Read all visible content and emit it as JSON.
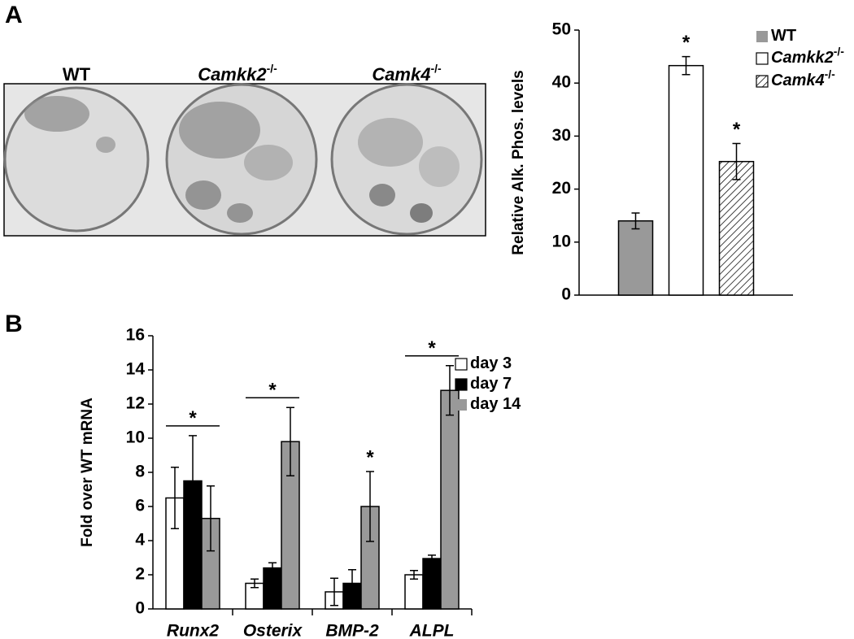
{
  "panels": [
    "A",
    "B"
  ],
  "photo": {
    "labels": [
      {
        "text": "WT"
      },
      {
        "text": "Camkk2",
        "sup": "-/-"
      },
      {
        "text": "Camk4",
        "sup": "-/-"
      }
    ]
  },
  "chart_data": [
    {
      "type": "bar",
      "ylabel": "Relative Alk. Phos. levels",
      "categories": [
        null
      ],
      "series": [
        {
          "name": "WT",
          "color": "#999999",
          "values": [
            14
          ],
          "errors": [
            1.5
          ]
        },
        {
          "name": "Camkk2",
          "name_sup": "-/-",
          "color": "#ffffff",
          "values": [
            43.3
          ],
          "errors": [
            1.7
          ]
        },
        {
          "name": "Camk4",
          "name_sup": "-/-",
          "color": "#ffffff",
          "pattern": "hatch",
          "values": [
            25.2
          ],
          "errors": [
            3.4
          ]
        }
      ],
      "ylim": [
        0,
        50
      ],
      "yticks": [
        0,
        10,
        20,
        30,
        40,
        50
      ],
      "annotations": [
        {
          "text": "*",
          "category": 0,
          "series": 1
        },
        {
          "text": "*",
          "category": 0,
          "series": 2
        }
      ]
    },
    {
      "type": "bar",
      "ylabel": "Fold over WT mRNA",
      "categories": [
        "Runx2",
        "Osterix",
        "BMP-2",
        "ALPL"
      ],
      "series": [
        {
          "name": "day 3",
          "color": "#ffffff",
          "values": [
            6.5,
            1.5,
            1.0,
            2.0
          ],
          "errors": [
            1.8,
            0.25,
            0.8,
            0.25
          ]
        },
        {
          "name": "day 7",
          "color": "#000000",
          "values": [
            7.5,
            2.4,
            1.5,
            2.95
          ],
          "errors": [
            2.65,
            0.3,
            0.8,
            0.2
          ]
        },
        {
          "name": "day 14",
          "color": "#999999",
          "values": [
            5.3,
            9.8,
            6.0,
            12.8
          ],
          "errors": [
            1.9,
            2.0,
            2.05,
            1.45
          ]
        }
      ],
      "ylim": [
        0,
        16
      ],
      "yticks": [
        0,
        2,
        4,
        6,
        8,
        10,
        12,
        14,
        16
      ],
      "annotations": [
        {
          "text": "*",
          "category": 0,
          "bracket": true
        },
        {
          "text": "*",
          "category": 1,
          "bracket": true
        },
        {
          "text": "*",
          "category": 2,
          "series": 2
        },
        {
          "text": "*",
          "category": 3,
          "bracket": true
        }
      ]
    }
  ]
}
